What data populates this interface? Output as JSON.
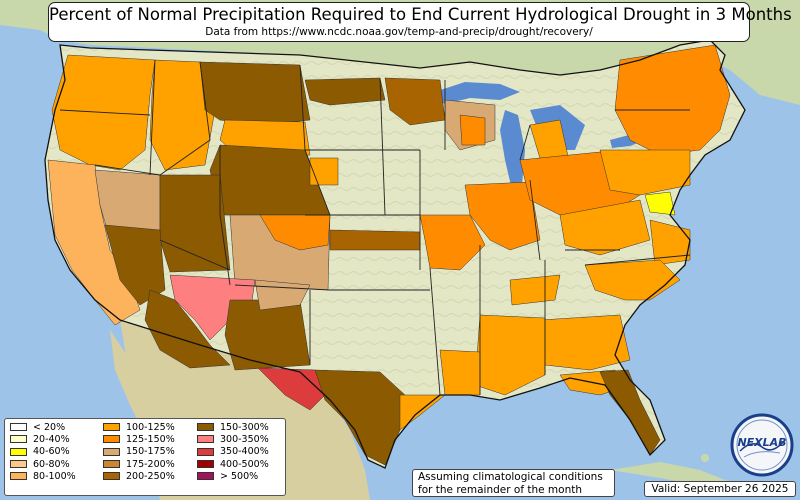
{
  "title": "Percent of Normal Precipitation Required to End Current Hydrological Drought in 3 Months",
  "subtitle": "Data from https://www.ncdc.noaa.gov/temp-and-precip/drought/recovery/",
  "legend": [
    {
      "label": "< 20%",
      "color": "#ffffff"
    },
    {
      "label": "20-40%",
      "color": "#ffffcc"
    },
    {
      "label": "40-60%",
      "color": "#ffff00"
    },
    {
      "label": "60-80%",
      "color": "#fdc98a"
    },
    {
      "label": "80-100%",
      "color": "#fdb35b"
    },
    {
      "label": "100-125%",
      "color": "#ffa200"
    },
    {
      "label": "125-150%",
      "color": "#ff8c00"
    },
    {
      "label": "150-175%",
      "color": "#d9a973"
    },
    {
      "label": "175-200%",
      "color": "#cd8532"
    },
    {
      "label": "200-250%",
      "color": "#a86400"
    },
    {
      "label": "150-300%",
      "color": "#8c5a00"
    },
    {
      "label": "300-350%",
      "color": "#fd7f80"
    },
    {
      "label": "350-400%",
      "color": "#dc3c3c"
    },
    {
      "label": "400-500%",
      "color": "#a00000"
    },
    {
      "label": "> 500%",
      "color": "#a0145a"
    }
  ],
  "note_line1": "Assuming climatological conditions",
  "note_line2": "for the remainder of the month",
  "valid": "Valid: September 26 2025",
  "logo_text": "NEXLAB",
  "colors": {
    "ocean": "#9ec3e8",
    "land_us": "#e6e9c8",
    "land_foreign": "#c7d6a8",
    "lakes": "#5a8ad0"
  }
}
